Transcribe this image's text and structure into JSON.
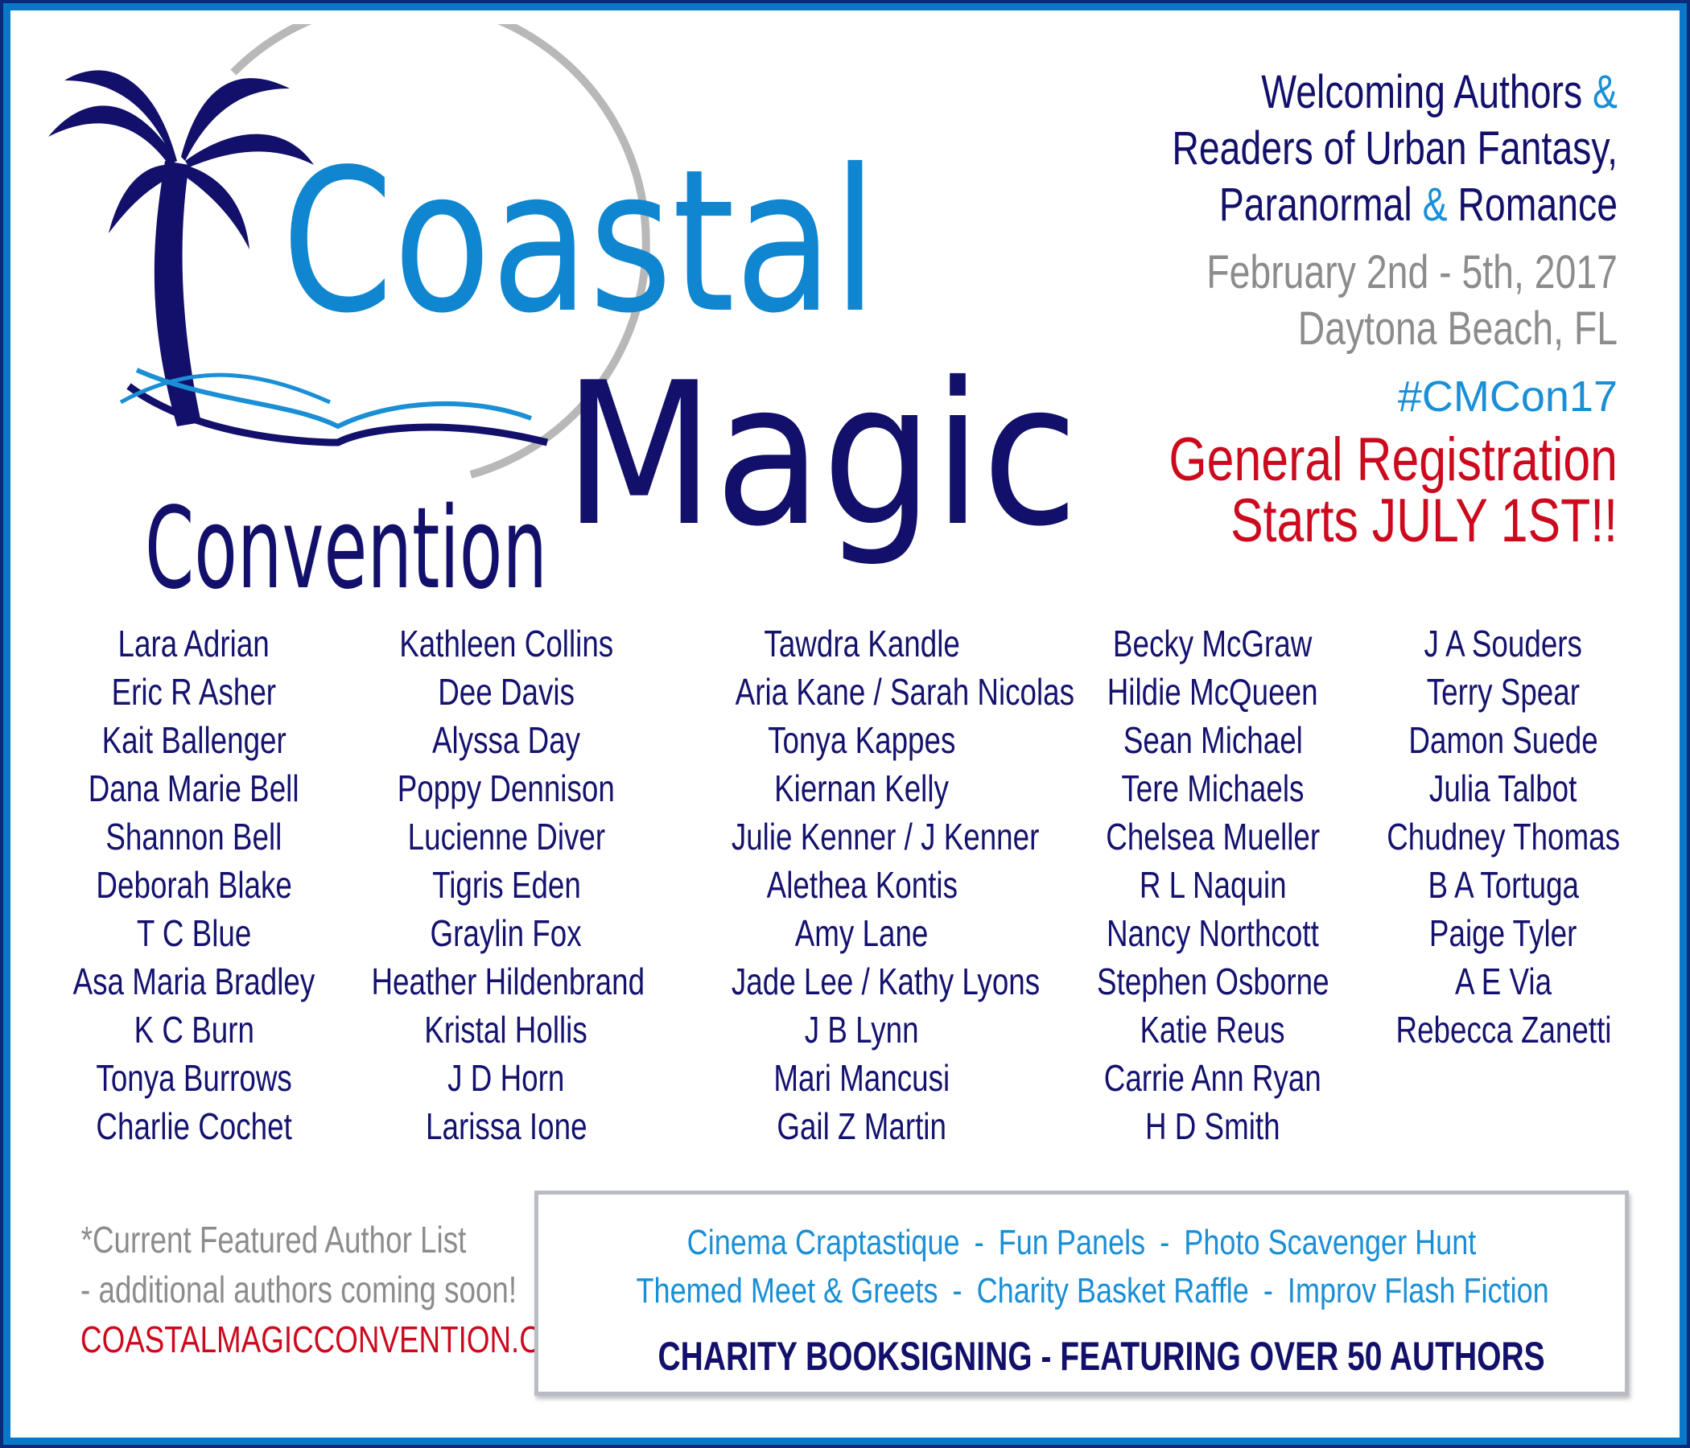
{
  "logo": {
    "word1": "Coastal",
    "word2": "Magic",
    "word3": "Convention",
    "icons": [
      "palm-tree-icon",
      "open-book-icon",
      "wave-icon"
    ]
  },
  "header": {
    "line1": "Welcoming Authors",
    "amp": "&",
    "line2": "Readers of Urban Fantasy,",
    "line3a": "Paranormal",
    "line3b": "Romance",
    "dates": "February 2nd - 5th, 2017",
    "location": "Daytona Beach, FL",
    "hashtag": "#CMCon17",
    "reg1": "General Registration",
    "reg2": "Starts JULY 1ST!!"
  },
  "authors": [
    [
      "Lara Adrian",
      "Eric R Asher",
      "Kait Ballenger",
      "Dana Marie Bell",
      "Shannon Bell",
      "Deborah Blake",
      "T C Blue",
      "Asa Maria Bradley",
      "K C Burn",
      "Tonya Burrows",
      "Charlie Cochet"
    ],
    [
      "Kathleen Collins",
      "Dee Davis",
      "Alyssa Day",
      "Poppy Dennison",
      "Lucienne Diver",
      "Tigris Eden",
      "Graylin Fox",
      "Heather Hildenbrand",
      "Kristal Hollis",
      "J D Horn",
      "Larissa Ione"
    ],
    [
      "Tawdra Kandle",
      "Aria Kane / Sarah Nicolas",
      "Tonya Kappes",
      "Kiernan Kelly",
      "Julie Kenner / J Kenner",
      "Alethea Kontis",
      "Amy Lane",
      "Jade Lee / Kathy Lyons",
      "J B Lynn",
      "Mari Mancusi",
      "Gail Z Martin"
    ],
    [
      "Becky McGraw",
      "Hildie McQueen",
      "Sean Michael",
      "Tere Michaels",
      "Chelsea Mueller",
      "R L Naquin",
      "Nancy Northcott",
      "Stephen Osborne",
      "Katie Reus",
      "Carrie Ann Ryan",
      "H D Smith"
    ],
    [
      "J A Souders",
      "Terry Spear",
      "Damon Suede",
      "Julia Talbot",
      "Chudney Thomas",
      "B A Tortuga",
      "Paige Tyler",
      "A E Via",
      "Rebecca Zanetti"
    ]
  ],
  "note": {
    "line1": "*Current Featured Author List",
    "line2": "- additional authors coming soon!",
    "website": "COASTALMAGICCONVENTION.COM"
  },
  "activities": {
    "separator": "-",
    "row1": [
      "Cinema Craptastique",
      "Fun Panels",
      "Photo Scavenger Hunt"
    ],
    "row2": [
      "Themed Meet & Greets",
      "Charity Basket Raffle",
      "Improv Flash Fiction"
    ],
    "charity": "CHARITY BOOKSIGNING - FEATURING OVER 50 AUTHORS"
  },
  "colors": {
    "navy": "#12106a",
    "blue": "#1a8fd6",
    "gray": "#8c8c8c",
    "red": "#cc0a1e",
    "frame": "#0a78c8"
  }
}
